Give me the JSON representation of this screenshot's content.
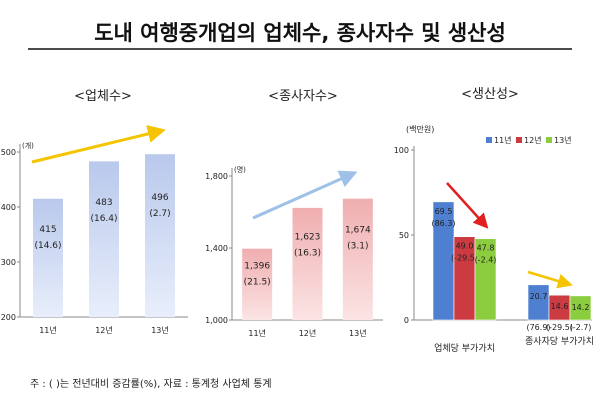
{
  "page": {
    "title": "도내 여행중개업의 업체수, 종사자수 및 생산성",
    "footnote": "주 : ( )는 전년대비 증감률(%), 자료 : 통계청 사업체 통계"
  },
  "colors": {
    "blue_bar_top": "#b9c9ec",
    "blue_bar_bottom": "#e8eefb",
    "pink_bar_top": "#f0aeb0",
    "pink_bar_bottom": "#fbe4e4",
    "series_11": "#4f7fd0",
    "series_12": "#cc3a42",
    "series_13": "#8ccd3f",
    "arrow_yellow": "#f5c400",
    "arrow_blue": "#9fc0e8",
    "arrow_red": "#e02020",
    "title_underline": "#111111"
  },
  "chart_data": [
    {
      "type": "bar",
      "title": "<업체수>",
      "unit": "(개)",
      "categories": [
        "11년",
        "12년",
        "13년"
      ],
      "values": [
        415,
        483,
        496
      ],
      "labels": [
        "415",
        "483",
        "496"
      ],
      "change_labels": [
        "(14.6)",
        "(16.4)",
        "(2.7)"
      ],
      "ylim": [
        200,
        500
      ],
      "yticks": [
        200,
        300,
        400,
        500
      ],
      "ytick_labels": [
        "200",
        "300",
        "400",
        "500"
      ],
      "trend_arrow": "up",
      "grid": false
    },
    {
      "type": "bar",
      "title": "<종사자수>",
      "unit": "(명)",
      "categories": [
        "11년",
        "12년",
        "13년"
      ],
      "values": [
        1396,
        1623,
        1674
      ],
      "labels": [
        "1,396",
        "1,623",
        "1,674"
      ],
      "change_labels": [
        "(21.5)",
        "(16.3)",
        "(3.1)"
      ],
      "ylim": [
        1000,
        1800
      ],
      "yticks": [
        1000,
        1400,
        1800
      ],
      "ytick_labels": [
        "1,000",
        "1,400",
        "1,800"
      ],
      "trend_arrow": "up",
      "grid": false
    },
    {
      "type": "bar",
      "title": "<생산성>",
      "unit": "(백만원)",
      "categories": [
        "업체당 부가가치",
        "종사자당 부가가치"
      ],
      "series": [
        {
          "name": "11년",
          "values": [
            69.5,
            20.7
          ],
          "labels": [
            "69.5",
            "20.7"
          ],
          "change_labels": [
            "(86.3)",
            "(76.9)"
          ]
        },
        {
          "name": "12년",
          "values": [
            49.0,
            14.6
          ],
          "labels": [
            "49.0",
            "14.6"
          ],
          "change_labels": [
            "(-29.5)",
            "(-29.5)"
          ]
        },
        {
          "name": "13년",
          "values": [
            47.8,
            14.2
          ],
          "labels": [
            "47.8",
            "14.2"
          ],
          "change_labels": [
            "(-2.4)",
            "(-2.7)"
          ]
        }
      ],
      "ylim": [
        0,
        100
      ],
      "yticks": [
        0,
        50,
        100
      ],
      "ytick_labels": [
        "0",
        "50",
        "100"
      ],
      "legend": "top-right",
      "trend_arrows": [
        "down",
        "down"
      ],
      "grid": false
    }
  ]
}
